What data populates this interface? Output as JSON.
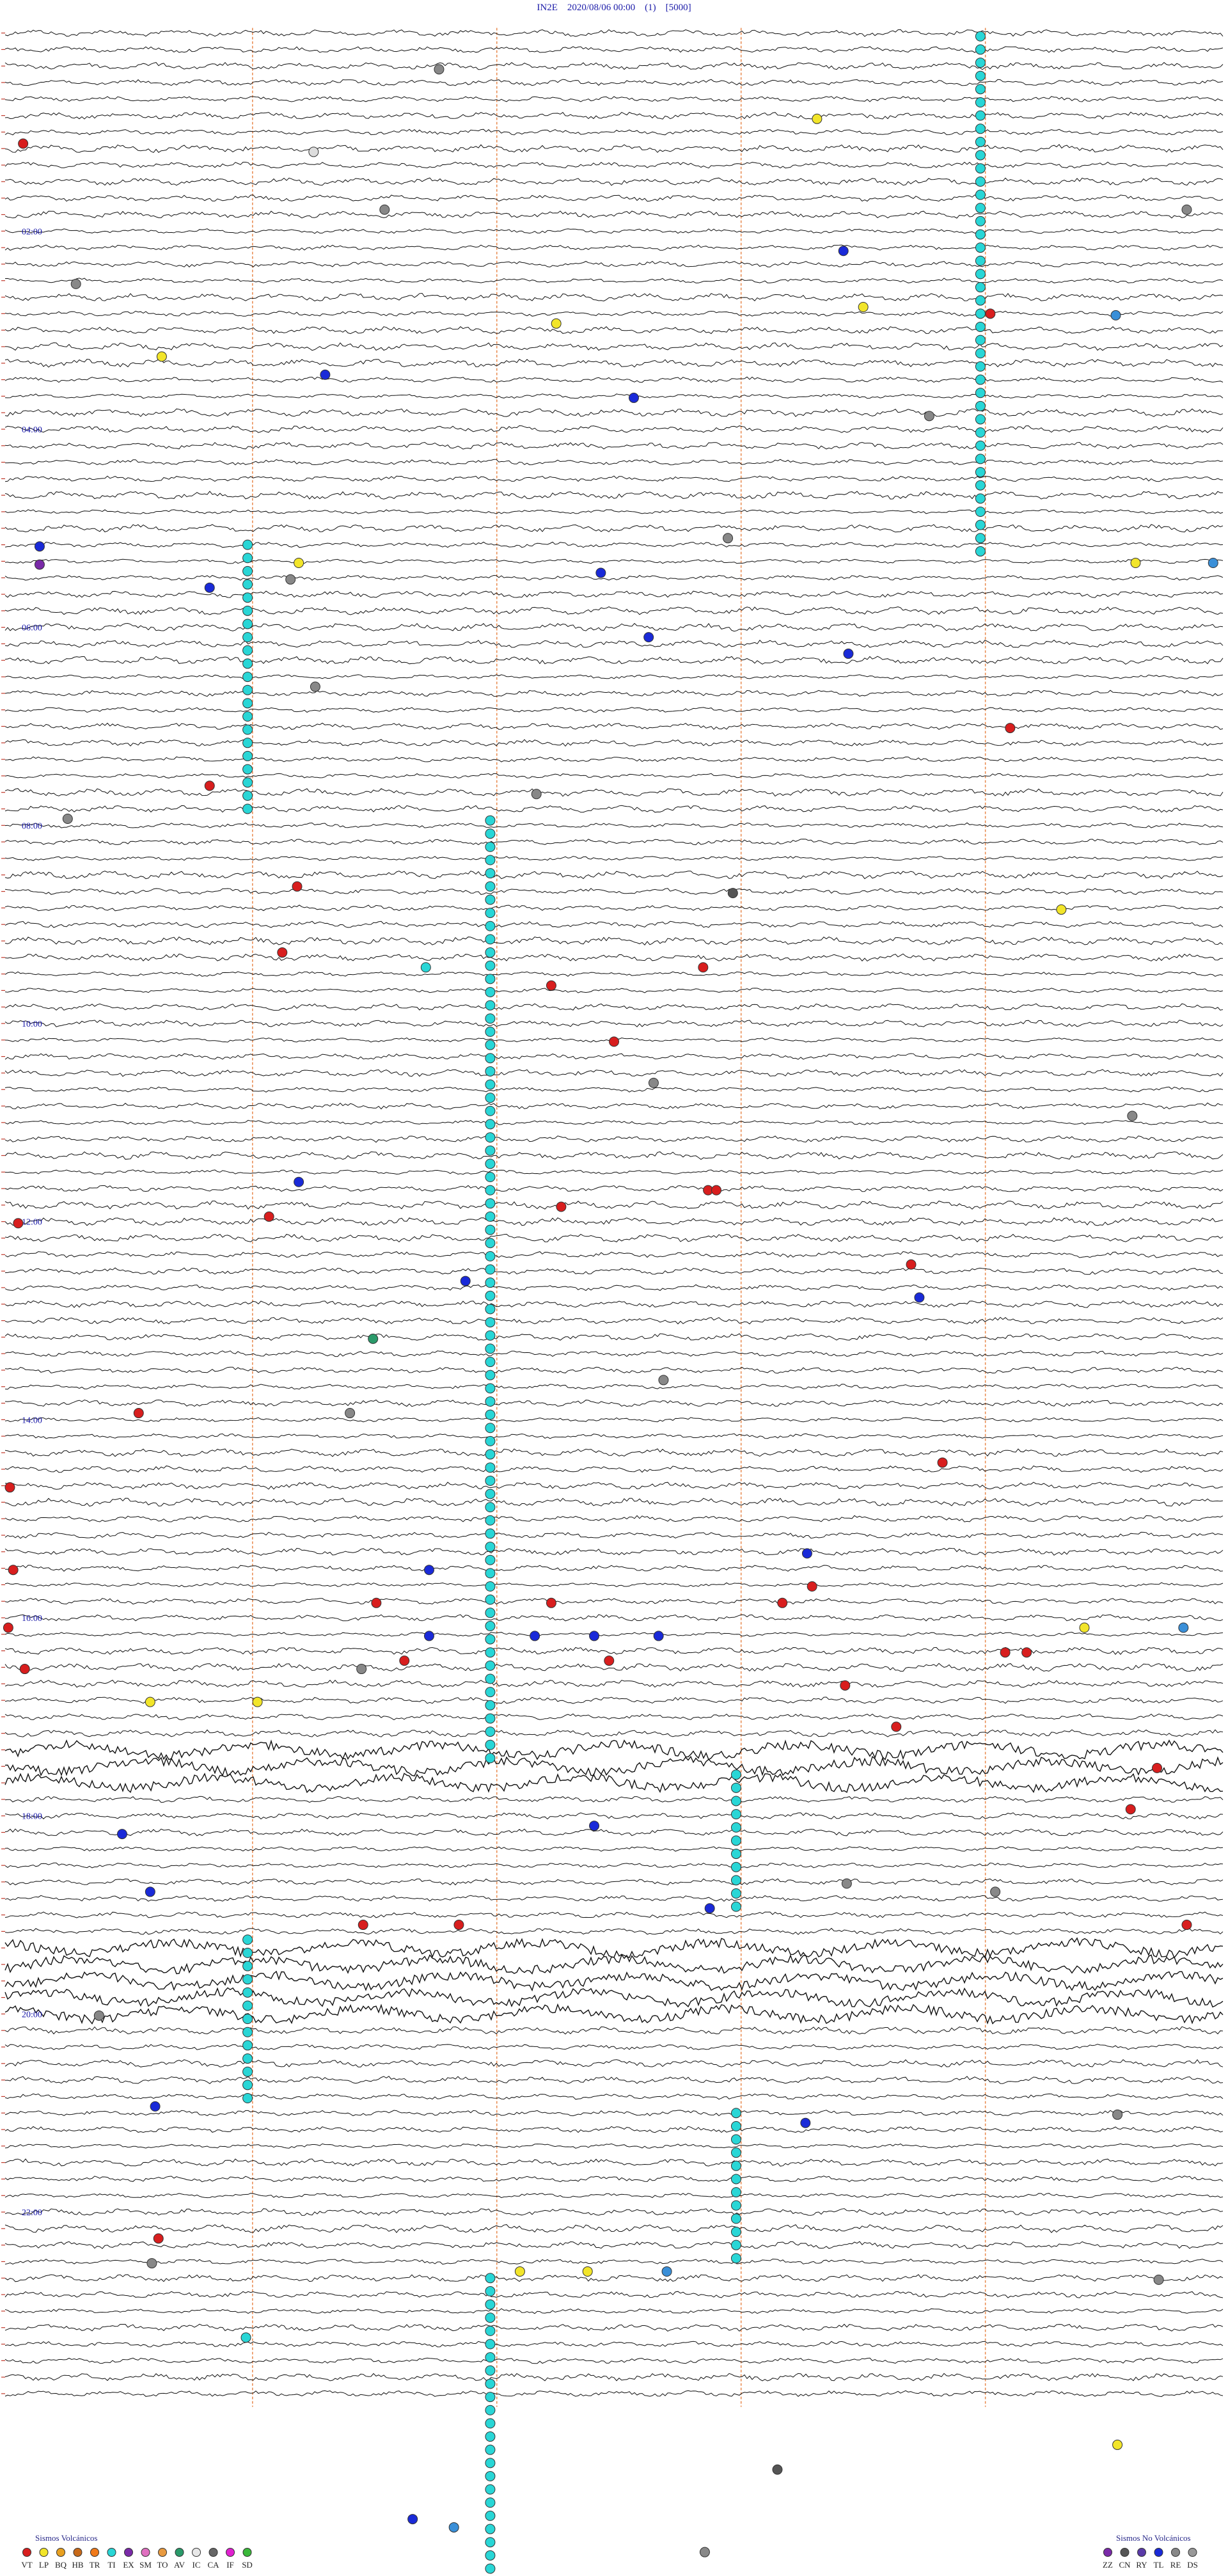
{
  "header": {
    "title": "IN2E    2020/08/06 00:00    (1)    [5000]"
  },
  "time_labels": [
    "02:00",
    "04:00",
    "06:00",
    "08:00",
    "10:00",
    "12:00",
    "14:00",
    "16:00",
    "18:00",
    "20:00",
    "22:00"
  ],
  "legend": {
    "volcanic": {
      "title": "Sismos Volcánicos",
      "codes": [
        "VT",
        "LP",
        "BQ",
        "HB",
        "TR",
        "TI",
        "EX",
        "SM",
        "TO",
        "AV",
        "IC",
        "CA",
        "IF",
        "SD"
      ]
    },
    "non_volcanic": {
      "title": "Sismos No Volcánicos",
      "codes": [
        "ZZ",
        "CN",
        "RY",
        "TL",
        "RE",
        "DS"
      ]
    }
  }
}
